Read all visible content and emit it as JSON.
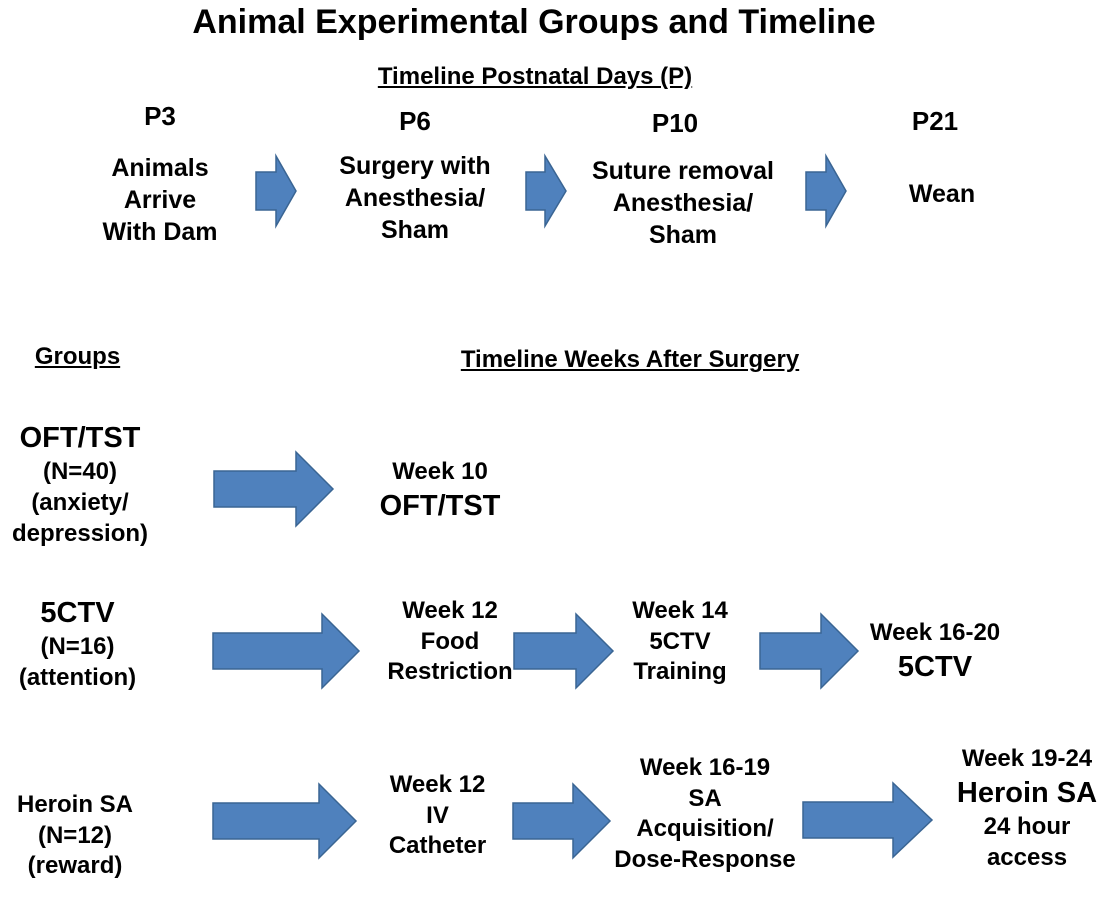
{
  "title": "Animal Experimental Groups and Timeline",
  "postnatal": {
    "heading": "Timeline Postnatal Days (P)",
    "steps": [
      {
        "day": "P3",
        "lines": [
          "Animals",
          "Arrive",
          "With Dam"
        ]
      },
      {
        "day": "P6",
        "lines": [
          "Surgery with",
          "Anesthesia/",
          "Sham"
        ]
      },
      {
        "day": "P10",
        "lines": [
          "Suture removal",
          "Anesthesia/",
          "Sham"
        ]
      },
      {
        "day": "P21",
        "lines": [
          "Wean"
        ]
      }
    ]
  },
  "groups_heading": "Groups",
  "weeks_heading": "Timeline Weeks After Surgery",
  "groups": [
    {
      "lines": [
        "OFT/TST",
        "(N=40)",
        "(anxiety/",
        "depression)"
      ],
      "steps": [
        {
          "lines": [
            "Week 10",
            "OFT/TST"
          ]
        }
      ]
    },
    {
      "lines": [
        "5CTV",
        "(N=16)",
        "(attention)"
      ],
      "steps": [
        {
          "lines": [
            "Week 12",
            "Food",
            "Restriction"
          ]
        },
        {
          "lines": [
            "Week 14",
            "5CTV",
            "Training"
          ]
        },
        {
          "lines": [
            "Week 16-20",
            "5CTV"
          ]
        }
      ]
    },
    {
      "lines": [
        "Heroin SA",
        "(N=12)",
        "(reward)"
      ],
      "steps": [
        {
          "lines": [
            "Week 12",
            "IV",
            "Catheter"
          ]
        },
        {
          "lines": [
            "Week 16-19",
            "SA",
            "Acquisition/",
            "Dose-Response"
          ]
        },
        {
          "lines": [
            "Week 19-24",
            "Heroin SA",
            "24 hour",
            "access"
          ]
        }
      ]
    }
  ],
  "arrow_color": "#4f81bd"
}
